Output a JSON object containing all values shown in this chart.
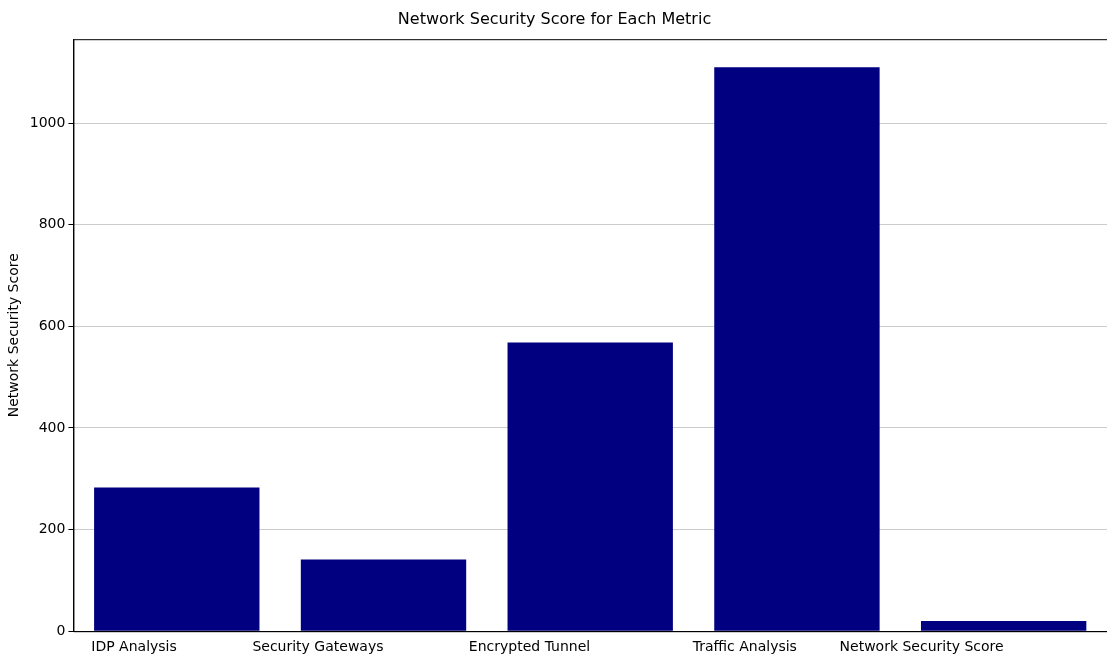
{
  "chart_data": {
    "type": "bar",
    "title": "Network Security Score for Each Metric",
    "ylabel": "Network Security Score",
    "categories": [
      "IDP Analysis",
      "Security Gateways",
      "Encrypted Tunnel",
      "Traffic Analysis",
      "Network Security Score"
    ],
    "values": [
      283,
      141,
      568,
      1110,
      20
    ],
    "color": "#000080",
    "ylim": [
      0,
      1165
    ],
    "yticks": [
      0,
      200,
      400,
      600,
      800,
      1000
    ],
    "grid": "y"
  }
}
